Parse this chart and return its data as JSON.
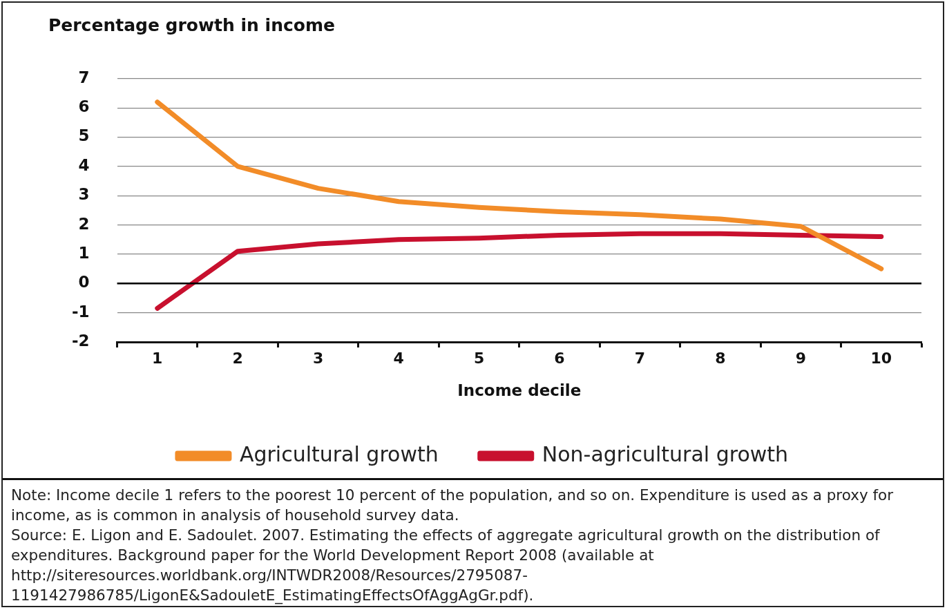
{
  "chart_data": {
    "type": "line",
    "ylabel": "Percentage growth in income",
    "xlabel": "Income decile",
    "categories": [
      "1",
      "2",
      "3",
      "4",
      "5",
      "6",
      "7",
      "8",
      "9",
      "10"
    ],
    "series": [
      {
        "name": "Agricultural growth",
        "color": "#f28c28",
        "values": [
          6.2,
          4.0,
          3.25,
          2.8,
          2.6,
          2.45,
          2.35,
          2.2,
          1.95,
          0.5
        ]
      },
      {
        "name": "Non-agricultural growth",
        "color": "#c8102e",
        "values": [
          -0.85,
          1.1,
          1.35,
          1.5,
          1.55,
          1.65,
          1.7,
          1.7,
          1.65,
          1.6
        ]
      }
    ],
    "ylim": [
      -2,
      7
    ],
    "yticks": [
      -2,
      -1,
      0,
      1,
      2,
      3,
      4,
      5,
      6,
      7
    ],
    "grid": "y",
    "legend": "bottom",
    "marker": "none",
    "line_style": "solid",
    "ref_lines": [
      {
        "axis": "y",
        "value": 0,
        "color": "#000000"
      }
    ],
    "annotations": [
      "Note: Income decile 1 refers to the poorest 10 percent of the population, and so on. Expenditure is used as a proxy for income, as is common in analysis of household survey data.",
      "Source: E. Ligon and E. Sadoulet. 2007. Estimating the effects of aggregate agricultural growth on the distribution of expenditures. Background paper for the World Development Report 2008 (available at http://siteresources.worldbank.org/INTWDR2008/Resources/2795087-1191427986785/LigonE&SadouletE_EstimatingEffectsOfAggAgGr.pdf)."
    ]
  }
}
